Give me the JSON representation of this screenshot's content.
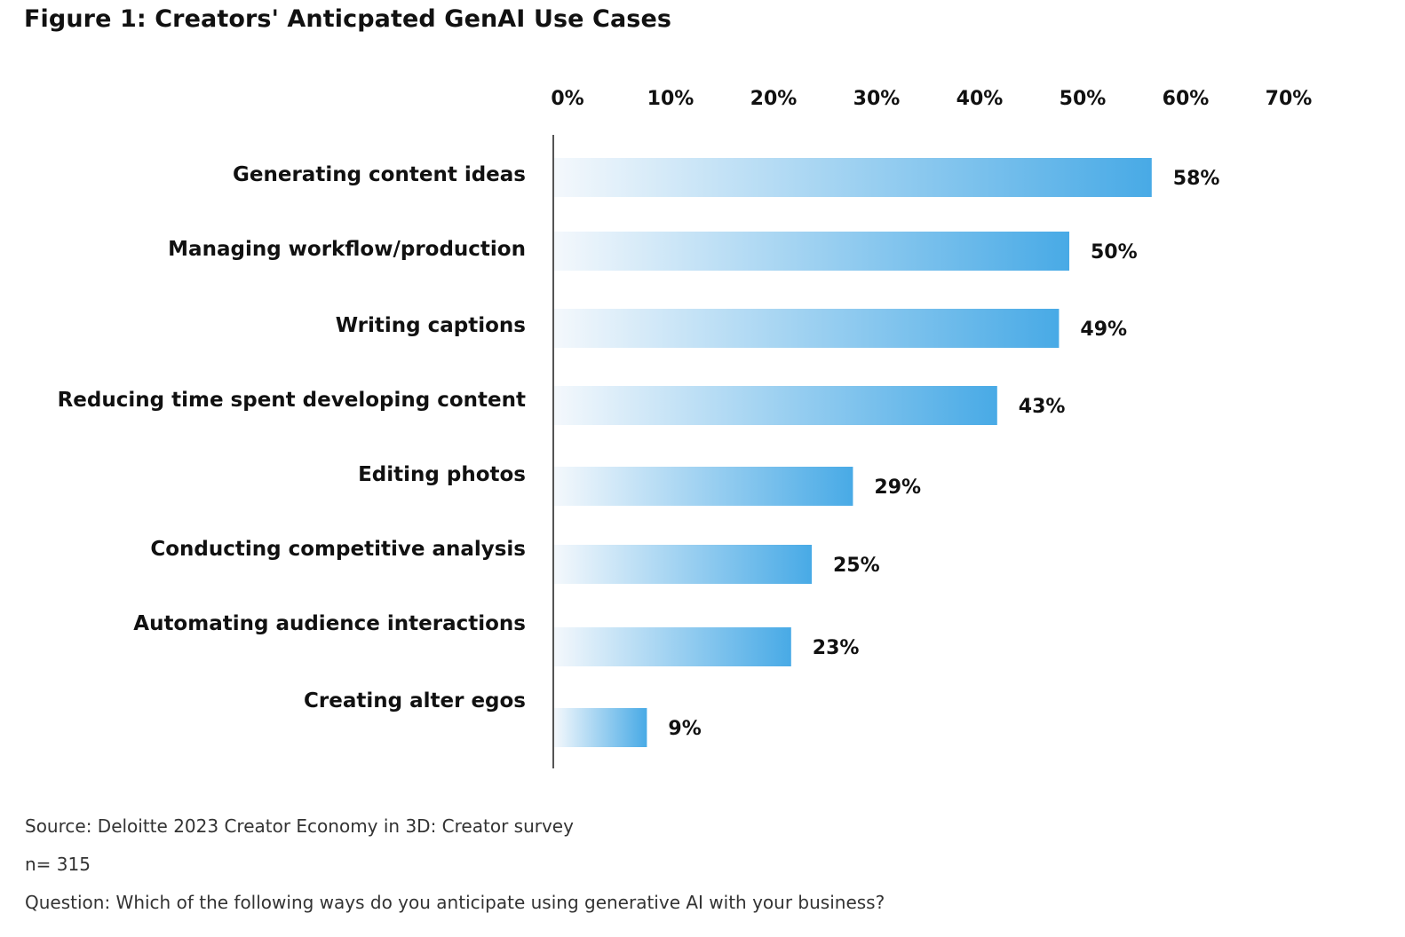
{
  "title": "Figure 1: Creators' Anticpated GenAI Use Cases",
  "colors": {
    "bar_start": "#f4f8fc",
    "bar_end": "#48aae6",
    "axis": "#555555"
  },
  "chart_data": {
    "type": "bar",
    "orientation": "horizontal",
    "categories": [
      "Generating content ideas",
      "Managing workflow/production",
      "Writing captions",
      "Reducing time spent developing content",
      "Editing photos",
      "Conducting competitive analysis",
      "Automating audience interactions",
      "Creating alter egos"
    ],
    "values": [
      58,
      50,
      49,
      43,
      29,
      25,
      23,
      9
    ],
    "data_labels": [
      "58%",
      "50%",
      "49%",
      "43%",
      "29%",
      "25%",
      "23%",
      "9%"
    ],
    "xlim": [
      0,
      70
    ],
    "ticks": [
      0,
      10,
      20,
      30,
      40,
      50,
      60,
      70
    ],
    "tick_labels": [
      "0%",
      "10%",
      "20%",
      "30%",
      "40%",
      "50%",
      "60%",
      "70%"
    ],
    "axis_position": "top",
    "grid": false,
    "legend": false
  },
  "notes": {
    "source": "Source: Deloitte 2023 Creator Economy in 3D: Creator survey",
    "sample": "n= 315",
    "question": "Question: Which of the following ways do you anticipate using generative AI with your business?"
  }
}
